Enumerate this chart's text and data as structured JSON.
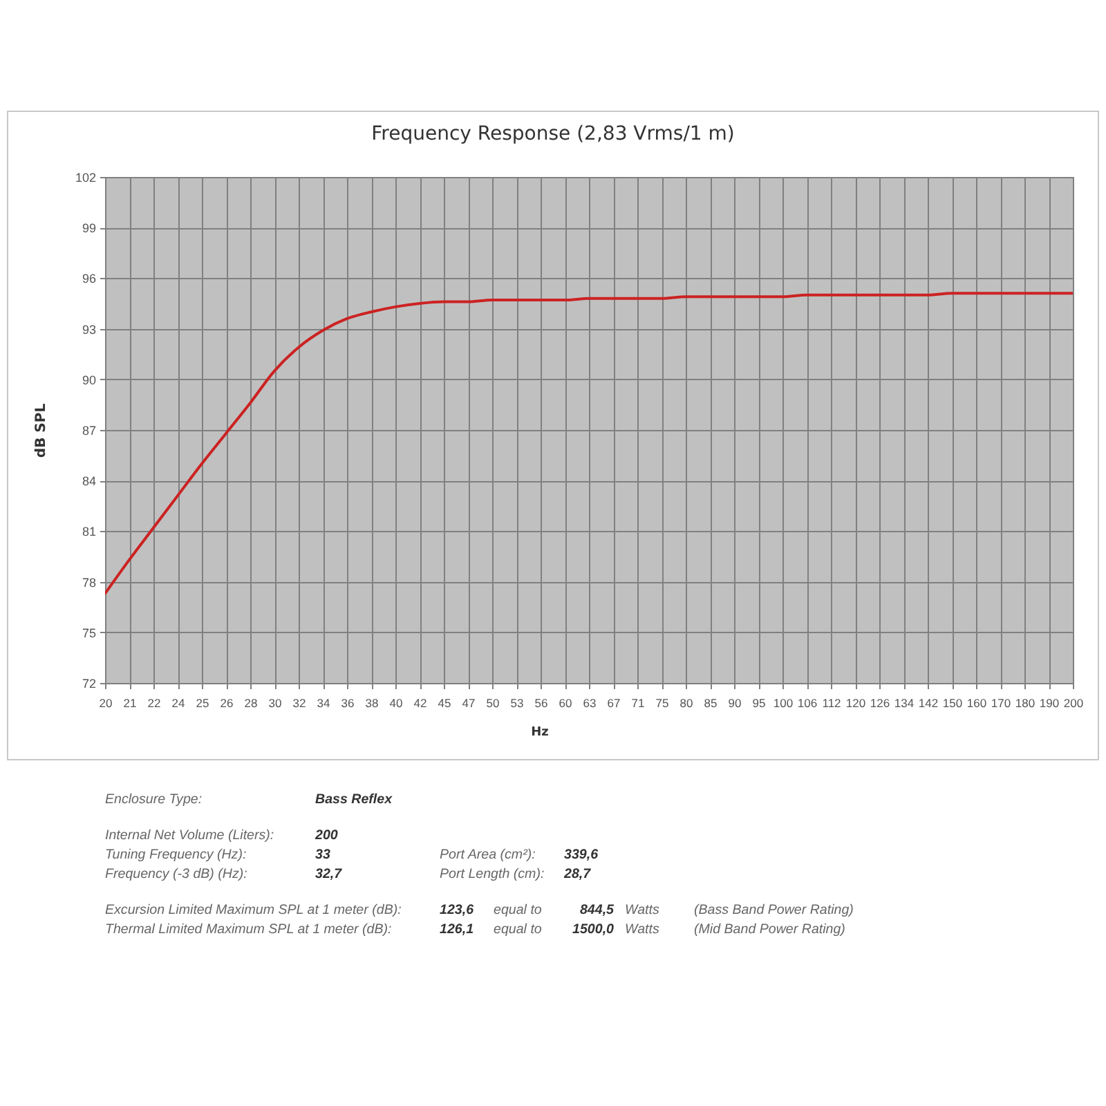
{
  "chart_data": {
    "type": "line",
    "title": "Frequency Response (2,83 Vrms/1 m)",
    "xlabel": "Hz",
    "ylabel": "dB SPL",
    "categories": [
      "20",
      "21",
      "22",
      "24",
      "25",
      "26",
      "28",
      "30",
      "32",
      "34",
      "36",
      "38",
      "40",
      "42",
      "45",
      "47",
      "50",
      "53",
      "56",
      "60",
      "63",
      "67",
      "71",
      "75",
      "80",
      "85",
      "90",
      "95",
      "100",
      "106",
      "112",
      "120",
      "126",
      "134",
      "142",
      "150",
      "160",
      "170",
      "180",
      "190",
      "200"
    ],
    "series": [
      {
        "color": "#cc2222",
        "values": [
          77.3,
          79.3,
          81.2,
          83.1,
          85.0,
          86.8,
          88.6,
          90.5,
          91.9,
          92.9,
          93.6,
          94.0,
          94.3,
          94.5,
          94.6,
          94.6,
          94.7,
          94.7,
          94.7,
          94.7,
          94.8,
          94.8,
          94.8,
          94.8,
          94.9,
          94.9,
          94.9,
          94.9,
          94.9,
          95.0,
          95.0,
          95.0,
          95.0,
          95.0,
          95.0,
          95.1,
          95.1,
          95.1,
          95.1,
          95.1,
          95.1
        ]
      }
    ],
    "ylim": [
      72,
      102
    ],
    "yticks": [
      72,
      75,
      78,
      81,
      84,
      87,
      90,
      93,
      96,
      99,
      102
    ],
    "grid": true,
    "annotations": [
      "Enclosure Type:",
      "Bass Reflex",
      "Internal Net Volume (Liters):",
      "200",
      "Tuning Frequency (Hz):",
      "33",
      "Port Area (cm²):",
      "339,6",
      "Frequency (-3 dB) (Hz):",
      "32,7",
      "Port Length (cm):",
      "28,7",
      "Excursion Limited Maximum SPL at 1 meter (dB):",
      "123,6",
      "equal to",
      "844,5",
      "Watts",
      "(Bass Band Power Rating)",
      "Thermal Limited Maximum SPL at 1 meter (dB):",
      "126,1",
      "equal to",
      "1500,0",
      "Watts",
      "(Mid Band Power Rating)"
    ]
  }
}
